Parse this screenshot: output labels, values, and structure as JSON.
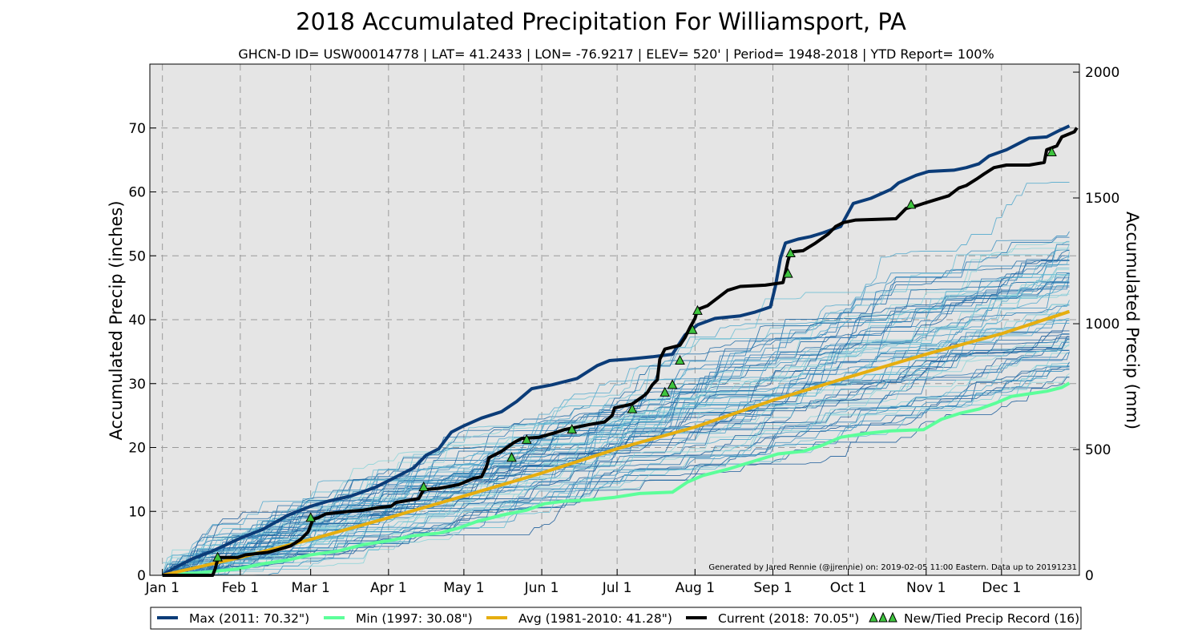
{
  "chart_data": {
    "type": "line",
    "title": "2018 Accumulated Precipitation For Williamsport, PA",
    "subtitle": "GHCN-D ID= USW00014778 | LAT= 41.2433 | LON= -76.9217 | ELEV= 520' | Period= 1948-2018 |  YTD Report= 100%",
    "ylabel": "Accumulated Precip (inches)",
    "ylabel_right": "Accumulated Precip (mm)",
    "ylim": [
      0,
      80
    ],
    "ylim_right_mm": [
      0,
      2032
    ],
    "yticks": [
      0,
      10,
      20,
      30,
      40,
      50,
      60,
      70
    ],
    "yticks_right": [
      0,
      500,
      1000,
      1500,
      2000
    ],
    "xlim_day": [
      -5,
      365
    ],
    "xticks": [
      {
        "day": 0,
        "label": "Jan 1"
      },
      {
        "day": 31,
        "label": "Feb 1"
      },
      {
        "day": 59,
        "label": "Mar 1"
      },
      {
        "day": 90,
        "label": "Apr 1"
      },
      {
        "day": 120,
        "label": "May 1"
      },
      {
        "day": 151,
        "label": "Jun 1"
      },
      {
        "day": 181,
        "label": "Jul 1"
      },
      {
        "day": 212,
        "label": "Aug 1"
      },
      {
        "day": 243,
        "label": "Sep 1"
      },
      {
        "day": 273,
        "label": "Oct 1"
      },
      {
        "day": 304,
        "label": "Nov 1"
      },
      {
        "day": 334,
        "label": "Dec 1"
      }
    ],
    "grid": true,
    "background": "#e5e5e5",
    "credit": "Generated by Jared Rennie (@jjrennie) on: 2019-02-05 11:00 Eastern. Data up to 20191231",
    "legend_position": "bottom",
    "legend": [
      {
        "label": "Max (2011:  70.32\")",
        "color": "#0b3c78",
        "kind": "line"
      },
      {
        "label": "Min (1997:  30.08\")",
        "color": "#5cff9a",
        "kind": "line"
      },
      {
        "label": "Avg (1981-2010:  41.28\")",
        "color": "#e6ae10",
        "kind": "line"
      },
      {
        "label": "Current (2018:  70.05\")",
        "color": "#000000",
        "kind": "line"
      },
      {
        "label": "New/Tied Precip Record (16)",
        "color": "#3ec43e",
        "kind": "triangles"
      }
    ],
    "series": [
      {
        "name": "Max (2011:  70.32\")",
        "color": "#0b3c78",
        "width": 4,
        "points": [
          [
            0,
            0
          ],
          [
            5,
            1.2
          ],
          [
            12,
            2.6
          ],
          [
            20,
            3.8
          ],
          [
            31,
            5.8
          ],
          [
            40,
            7.2
          ],
          [
            50,
            9.4
          ],
          [
            59,
            10.8
          ],
          [
            66,
            11.6
          ],
          [
            75,
            12.4
          ],
          [
            85,
            13.8
          ],
          [
            92,
            15.2
          ],
          [
            100,
            16.8
          ],
          [
            105,
            18.8
          ],
          [
            110,
            19.8
          ],
          [
            115,
            22.4
          ],
          [
            120,
            23.4
          ],
          [
            127,
            24.6
          ],
          [
            135,
            25.6
          ],
          [
            141,
            27.2
          ],
          [
            147,
            29.2
          ],
          [
            155,
            29.8
          ],
          [
            165,
            30.8
          ],
          [
            173,
            32.8
          ],
          [
            178,
            33.6
          ],
          [
            185,
            33.8
          ],
          [
            195,
            34.2
          ],
          [
            203,
            34.6
          ],
          [
            208,
            37.6
          ],
          [
            213,
            39.2
          ],
          [
            220,
            40.2
          ],
          [
            230,
            40.6
          ],
          [
            236,
            41.2
          ],
          [
            242,
            42.0
          ],
          [
            244,
            45.2
          ],
          [
            246,
            49.6
          ],
          [
            248,
            52.0
          ],
          [
            253,
            52.6
          ],
          [
            258,
            53.0
          ],
          [
            263,
            53.6
          ],
          [
            270,
            54.6
          ],
          [
            275,
            58.2
          ],
          [
            282,
            59.0
          ],
          [
            290,
            60.4
          ],
          [
            293,
            61.4
          ],
          [
            300,
            62.6
          ],
          [
            305,
            63.2
          ],
          [
            315,
            63.4
          ],
          [
            320,
            63.8
          ],
          [
            325,
            64.4
          ],
          [
            329,
            65.6
          ],
          [
            336,
            66.6
          ],
          [
            345,
            68.4
          ],
          [
            352,
            68.6
          ],
          [
            357,
            69.6
          ],
          [
            361,
            70.32
          ]
        ]
      },
      {
        "name": "Min (1997:  30.08\")",
        "color": "#5cff9a",
        "width": 4,
        "points": [
          [
            0,
            0
          ],
          [
            15,
            0.4
          ],
          [
            30,
            1.0
          ],
          [
            40,
            1.8
          ],
          [
            50,
            2.4
          ],
          [
            59,
            3.2
          ],
          [
            70,
            3.8
          ],
          [
            80,
            4.8
          ],
          [
            90,
            5.4
          ],
          [
            100,
            6.2
          ],
          [
            110,
            6.6
          ],
          [
            118,
            7.4
          ],
          [
            125,
            8.4
          ],
          [
            135,
            9.4
          ],
          [
            145,
            10.2
          ],
          [
            152,
            11.2
          ],
          [
            160,
            11.6
          ],
          [
            170,
            11.8
          ],
          [
            180,
            12.2
          ],
          [
            190,
            12.8
          ],
          [
            203,
            13.0
          ],
          [
            209,
            14.6
          ],
          [
            215,
            15.6
          ],
          [
            225,
            16.6
          ],
          [
            235,
            17.8
          ],
          [
            245,
            19.0
          ],
          [
            255,
            19.4
          ],
          [
            263,
            20.4
          ],
          [
            270,
            21.6
          ],
          [
            280,
            22.2
          ],
          [
            290,
            22.6
          ],
          [
            303,
            22.8
          ],
          [
            310,
            24.4
          ],
          [
            318,
            25.4
          ],
          [
            325,
            26.0
          ],
          [
            332,
            27.0
          ],
          [
            338,
            28.0
          ],
          [
            345,
            28.4
          ],
          [
            352,
            28.8
          ],
          [
            358,
            29.4
          ],
          [
            361,
            30.08
          ]
        ]
      },
      {
        "name": "Avg (1981-2010:  41.28\")",
        "color": "#e6ae10",
        "width": 4,
        "points": [
          [
            0,
            0
          ],
          [
            31,
            2.8
          ],
          [
            59,
            5.6
          ],
          [
            90,
            9.0
          ],
          [
            120,
            12.4
          ],
          [
            151,
            16.0
          ],
          [
            181,
            19.8
          ],
          [
            212,
            23.2
          ],
          [
            243,
            27.4
          ],
          [
            273,
            31.0
          ],
          [
            304,
            34.6
          ],
          [
            334,
            37.8
          ],
          [
            361,
            41.28
          ]
        ]
      },
      {
        "name": "Current (2018:  70.05\")",
        "color": "#000000",
        "width": 4,
        "points": [
          [
            0,
            0
          ],
          [
            20,
            0
          ],
          [
            21,
            1.0
          ],
          [
            22,
            2.5
          ],
          [
            23,
            2.8
          ],
          [
            30,
            2.8
          ],
          [
            33,
            3.2
          ],
          [
            42,
            3.6
          ],
          [
            46,
            4.0
          ],
          [
            51,
            4.6
          ],
          [
            55,
            5.6
          ],
          [
            58,
            6.8
          ],
          [
            59,
            7.8
          ],
          [
            60,
            8.8
          ],
          [
            62,
            9.0
          ],
          [
            65,
            9.6
          ],
          [
            70,
            9.8
          ],
          [
            74,
            10.0
          ],
          [
            80,
            10.2
          ],
          [
            86,
            10.6
          ],
          [
            91,
            10.8
          ],
          [
            93,
            11.4
          ],
          [
            102,
            12.0
          ],
          [
            104,
            13.4
          ],
          [
            110,
            13.6
          ],
          [
            118,
            14.2
          ],
          [
            124,
            15.2
          ],
          [
            127,
            15.4
          ],
          [
            129,
            17.0
          ],
          [
            130,
            18.4
          ],
          [
            135,
            19.4
          ],
          [
            140,
            20.8
          ],
          [
            143,
            21.4
          ],
          [
            150,
            21.6
          ],
          [
            157,
            22.4
          ],
          [
            160,
            22.8
          ],
          [
            170,
            23.6
          ],
          [
            176,
            24.0
          ],
          [
            179,
            25.0
          ],
          [
            180,
            26.2
          ],
          [
            187,
            26.8
          ],
          [
            192,
            28.2
          ],
          [
            193,
            28.6
          ],
          [
            195,
            29.8
          ],
          [
            197,
            30.6
          ],
          [
            198,
            33.8
          ],
          [
            200,
            35.4
          ],
          [
            206,
            36.0
          ],
          [
            208,
            37.2
          ],
          [
            210,
            38.8
          ],
          [
            212,
            40.2
          ],
          [
            213,
            41.6
          ],
          [
            217,
            42.2
          ],
          [
            221,
            43.4
          ],
          [
            225,
            44.6
          ],
          [
            230,
            45.2
          ],
          [
            240,
            45.4
          ],
          [
            247,
            45.8
          ],
          [
            248,
            47.4
          ],
          [
            249,
            49.2
          ],
          [
            250,
            50.6
          ],
          [
            255,
            50.8
          ],
          [
            260,
            52.0
          ],
          [
            265,
            53.4
          ],
          [
            268,
            54.6
          ],
          [
            271,
            55.2
          ],
          [
            276,
            55.6
          ],
          [
            292,
            55.8
          ],
          [
            296,
            57.4
          ],
          [
            300,
            57.8
          ],
          [
            303,
            58.2
          ],
          [
            308,
            58.8
          ],
          [
            313,
            59.4
          ],
          [
            317,
            60.6
          ],
          [
            320,
            61.0
          ],
          [
            324,
            62.0
          ],
          [
            327,
            62.8
          ],
          [
            331,
            63.8
          ],
          [
            336,
            64.2
          ],
          [
            345,
            64.2
          ],
          [
            351,
            64.6
          ],
          [
            352,
            66.6
          ],
          [
            356,
            67.2
          ],
          [
            358,
            68.6
          ],
          [
            363,
            69.4
          ],
          [
            364,
            70.05
          ]
        ]
      }
    ],
    "record_markers": [
      {
        "day": 22,
        "value": 2.8
      },
      {
        "day": 59,
        "value": 9.0
      },
      {
        "day": 104,
        "value": 13.8
      },
      {
        "day": 139,
        "value": 18.4
      },
      {
        "day": 145,
        "value": 21.2
      },
      {
        "day": 163,
        "value": 22.8
      },
      {
        "day": 187,
        "value": 26.0
      },
      {
        "day": 200,
        "value": 28.6
      },
      {
        "day": 203,
        "value": 29.8
      },
      {
        "day": 206,
        "value": 33.6
      },
      {
        "day": 211,
        "value": 38.4
      },
      {
        "day": 213,
        "value": 41.4
      },
      {
        "day": 249,
        "value": 47.2
      },
      {
        "day": 250,
        "value": 50.4
      },
      {
        "day": 298,
        "value": 58.0
      },
      {
        "day": 354,
        "value": 66.2
      }
    ]
  }
}
